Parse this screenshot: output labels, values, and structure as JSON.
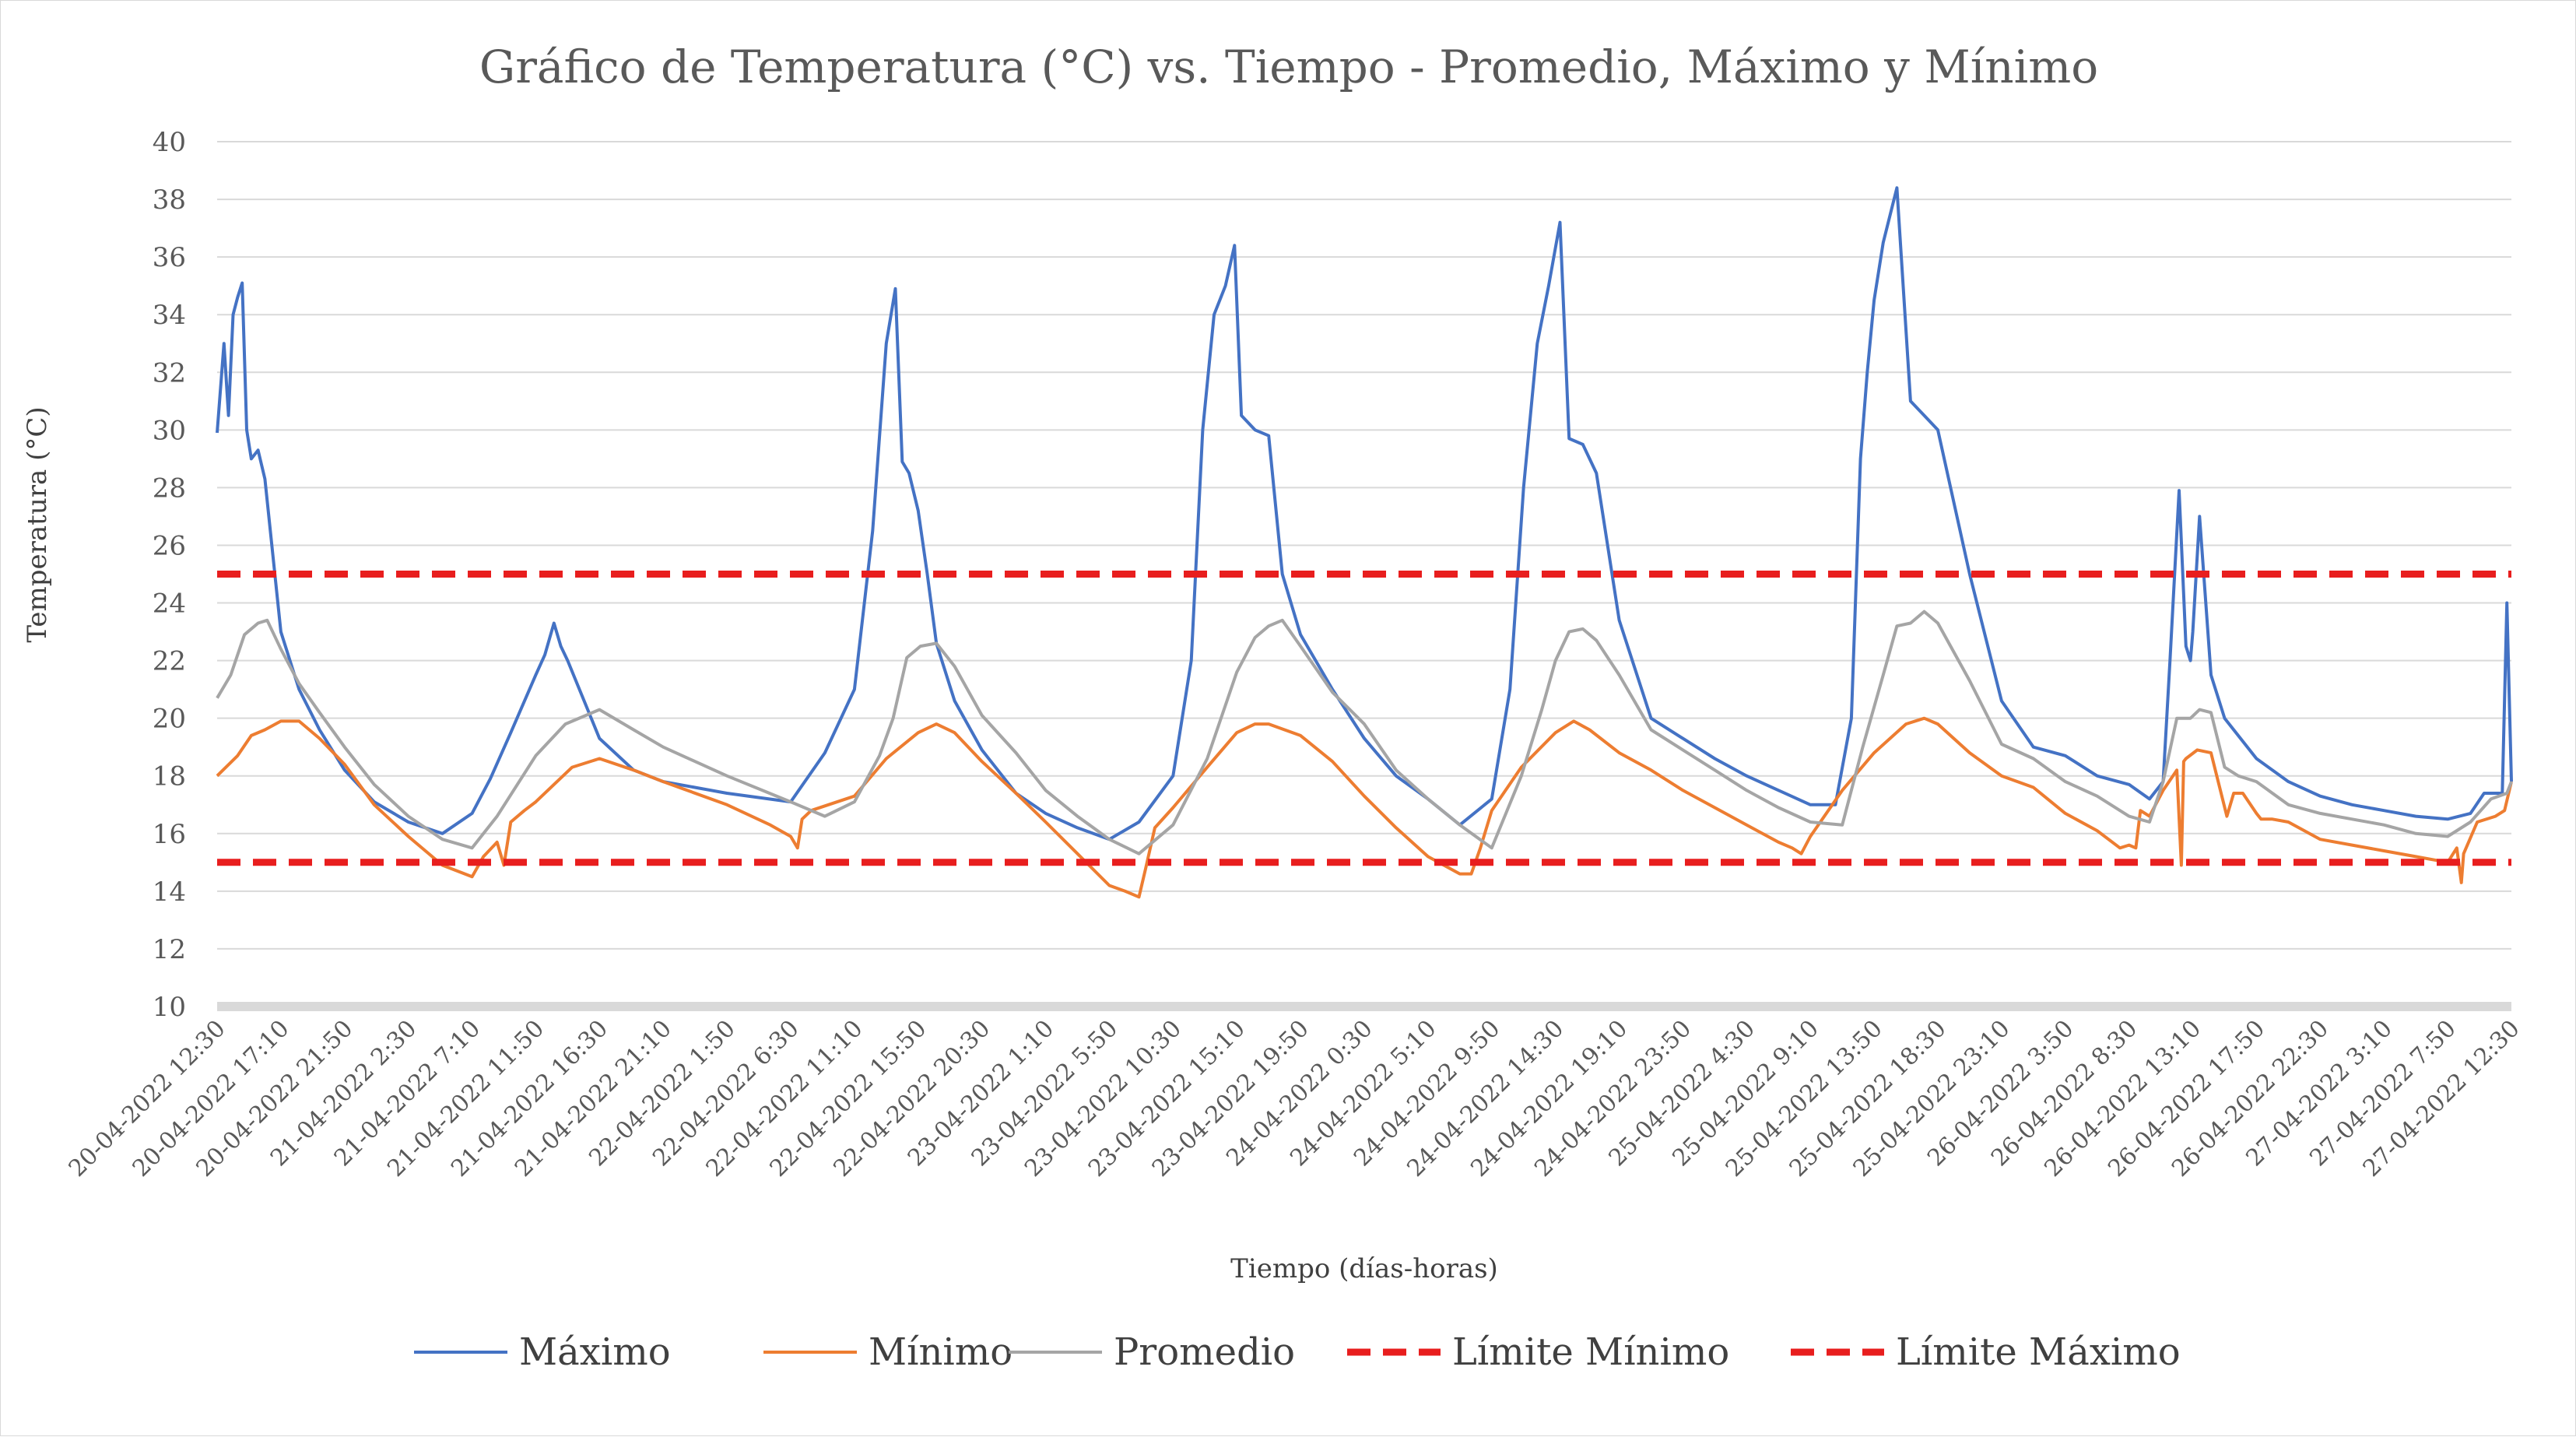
{
  "chart_data": {
    "type": "line",
    "title": "Gráfico de Temperatura (°C) vs. Tiempo - Promedio, Máximo y Mínimo",
    "xlabel": "Tiempo (días-horas)",
    "ylabel": "Temperatura (°C)",
    "ylim": [
      10,
      40
    ],
    "y_ticks": [
      "10",
      "12",
      "14",
      "16",
      "18",
      "20",
      "22",
      "24",
      "26",
      "28",
      "30",
      "32",
      "34",
      "36",
      "38",
      "40"
    ],
    "x_tick_labels": [
      "20-04-2022 12:30",
      "20-04-2022 17:10",
      "20-04-2022 21:50",
      "21-04-2022 2:30",
      "21-04-2022 7:10",
      "21-04-2022 11:50",
      "21-04-2022 16:30",
      "21-04-2022 21:10",
      "22-04-2022 1:50",
      "22-04-2022 6:30",
      "22-04-2022 11:10",
      "22-04-2022 15:50",
      "22-04-2022 20:30",
      "23-04-2022 1:10",
      "23-04-2022 5:50",
      "23-04-2022 10:30",
      "23-04-2022 15:10",
      "23-04-2022 19:50",
      "24-04-2022 0:30",
      "24-04-2022 5:10",
      "24-04-2022 9:50",
      "24-04-2022 14:30",
      "24-04-2022 19:10",
      "24-04-2022 23:50",
      "25-04-2022 4:30",
      "25-04-2022 9:10",
      "25-04-2022 13:50",
      "25-04-2022 18:30",
      "25-04-2022 23:10",
      "26-04-2022 3:50",
      "26-04-2022 8:30",
      "26-04-2022 13:10",
      "26-04-2022 17:50",
      "26-04-2022 22:30",
      "27-04-2022 3:10",
      "27-04-2022 7:50",
      "27-04-2022 12:30"
    ],
    "grid": true,
    "legend_position": "bottom",
    "series": [
      {
        "name": "Máximo",
        "color": "#4472c4",
        "dash": "solid",
        "x": [
          "20-04-2022 12:30",
          "20-04-2022 13:00",
          "20-04-2022 13:20",
          "20-04-2022 13:40",
          "20-04-2022 14:00",
          "20-04-2022 14:20",
          "20-04-2022 14:40",
          "20-04-2022 15:00",
          "20-04-2022 15:30",
          "20-04-2022 16:00",
          "20-04-2022 17:10",
          "20-04-2022 18:30",
          "20-04-2022 20:00",
          "20-04-2022 21:50",
          "21-04-2022 0:00",
          "21-04-2022 2:30",
          "21-04-2022 5:00",
          "21-04-2022 7:10",
          "21-04-2022 8:30",
          "21-04-2022 10:00",
          "21-04-2022 11:50",
          "21-04-2022 12:30",
          "21-04-2022 13:10",
          "21-04-2022 13:40",
          "21-04-2022 14:10",
          "21-04-2022 16:30",
          "21-04-2022 19:00",
          "21-04-2022 21:10",
          "22-04-2022 1:50",
          "22-04-2022 6:30",
          "22-04-2022 9:00",
          "22-04-2022 11:10",
          "22-04-2022 12:30",
          "22-04-2022 13:30",
          "22-04-2022 14:10",
          "22-04-2022 14:40",
          "22-04-2022 15:10",
          "22-04-2022 15:50",
          "22-04-2022 16:30",
          "22-04-2022 17:10",
          "22-04-2022 18:30",
          "22-04-2022 20:30",
          "22-04-2022 23:00",
          "23-04-2022 1:10",
          "23-04-2022 3:30",
          "23-04-2022 5:50",
          "23-04-2022 8:00",
          "23-04-2022 10:30",
          "23-04-2022 11:50",
          "23-04-2022 12:40",
          "23-04-2022 13:30",
          "23-04-2022 14:20",
          "23-04-2022 15:00",
          "23-04-2022 15:30",
          "23-04-2022 16:30",
          "23-04-2022 17:30",
          "23-04-2022 18:30",
          "23-04-2022 19:50",
          "23-04-2022 22:10",
          "24-04-2022 0:30",
          "24-04-2022 2:50",
          "24-04-2022 5:10",
          "24-04-2022 7:30",
          "24-04-2022 9:50",
          "24-04-2022 11:10",
          "24-04-2022 12:10",
          "24-04-2022 13:10",
          "24-04-2022 14:00",
          "24-04-2022 14:50",
          "24-04-2022 15:30",
          "24-04-2022 16:30",
          "24-04-2022 17:30",
          "24-04-2022 19:10",
          "24-04-2022 21:30",
          "24-04-2022 23:50",
          "25-04-2022 2:10",
          "25-04-2022 4:30",
          "25-04-2022 6:50",
          "25-04-2022 9:10",
          "25-04-2022 11:00",
          "25-04-2022 12:10",
          "25-04-2022 12:50",
          "25-04-2022 13:20",
          "25-04-2022 13:50",
          "25-04-2022 14:30",
          "25-04-2022 15:30",
          "25-04-2022 16:30",
          "25-04-2022 17:30",
          "25-04-2022 18:30",
          "25-04-2022 20:50",
          "25-04-2022 23:10",
          "26-04-2022 1:30",
          "26-04-2022 3:50",
          "26-04-2022 6:10",
          "26-04-2022 8:30",
          "26-04-2022 10:00",
          "26-04-2022 11:00",
          "26-04-2022 11:30",
          "26-04-2022 12:10",
          "26-04-2022 12:40",
          "26-04-2022 13:00",
          "26-04-2022 13:10",
          "26-04-2022 13:40",
          "26-04-2022 14:30",
          "26-04-2022 15:30",
          "26-04-2022 17:50",
          "26-04-2022 20:10",
          "26-04-2022 22:30",
          "27-04-2022 0:50",
          "27-04-2022 3:10",
          "27-04-2022 5:30",
          "27-04-2022 7:50",
          "27-04-2022 9:30",
          "27-04-2022 10:30",
          "27-04-2022 11:50",
          "27-04-2022 12:10",
          "27-04-2022 12:30"
        ],
        "y": [
          29.9,
          33.0,
          30.5,
          34.0,
          34.6,
          35.1,
          30.0,
          29.0,
          29.3,
          28.3,
          23.0,
          21.0,
          19.6,
          18.2,
          17.1,
          16.4,
          16.0,
          16.7,
          17.9,
          19.5,
          21.5,
          22.2,
          23.3,
          22.5,
          22.0,
          19.3,
          18.2,
          17.8,
          17.4,
          17.1,
          18.8,
          21.0,
          26.5,
          33.0,
          34.9,
          28.9,
          28.5,
          27.2,
          25.0,
          22.6,
          20.6,
          18.9,
          17.4,
          16.7,
          16.2,
          15.8,
          16.4,
          18.0,
          22.0,
          30.0,
          34.0,
          35.0,
          36.4,
          30.5,
          30.0,
          29.8,
          25.0,
          22.9,
          21.0,
          19.3,
          18.0,
          17.2,
          16.3,
          17.2,
          21.0,
          28.0,
          33.0,
          35.0,
          37.2,
          29.7,
          29.5,
          28.5,
          23.4,
          20.0,
          19.3,
          18.6,
          18.0,
          17.5,
          17.0,
          17.0,
          20.0,
          29.0,
          32.0,
          34.5,
          36.5,
          38.4,
          31.0,
          30.5,
          30.0,
          25.0,
          20.6,
          19.0,
          18.7,
          18.0,
          17.7,
          17.2,
          17.8,
          22.0,
          27.9,
          22.5,
          22.0,
          23.0,
          27.0,
          21.5,
          20.0,
          18.6,
          17.8,
          17.3,
          17.0,
          16.8,
          16.6,
          16.5,
          16.7,
          17.4,
          17.4,
          24.0,
          17.8
        ]
      },
      {
        "name": "Mínimo",
        "color": "#ed7d31",
        "dash": "solid",
        "x": [
          "20-04-2022 12:30",
          "20-04-2022 14:00",
          "20-04-2022 15:00",
          "20-04-2022 16:00",
          "20-04-2022 17:10",
          "20-04-2022 18:30",
          "20-04-2022 20:00",
          "20-04-2022 21:50",
          "21-04-2022 0:00",
          "21-04-2022 2:30",
          "21-04-2022 5:00",
          "21-04-2022 7:10",
          "21-04-2022 8:00",
          "21-04-2022 9:00",
          "21-04-2022 9:30",
          "21-04-2022 10:00",
          "21-04-2022 11:00",
          "21-04-2022 11:50",
          "21-04-2022 13:10",
          "21-04-2022 14:30",
          "21-04-2022 16:30",
          "21-04-2022 19:00",
          "21-04-2022 21:10",
          "22-04-2022 1:50",
          "22-04-2022 5:00",
          "22-04-2022 6:30",
          "22-04-2022 7:00",
          "22-04-2022 7:20",
          "22-04-2022 8:00",
          "22-04-2022 11:10",
          "22-04-2022 13:30",
          "22-04-2022 15:50",
          "22-04-2022 17:10",
          "22-04-2022 18:30",
          "22-04-2022 20:30",
          "22-04-2022 23:00",
          "23-04-2022 1:10",
          "23-04-2022 3:30",
          "23-04-2022 5:50",
          "23-04-2022 7:00",
          "23-04-2022 8:00",
          "23-04-2022 8:30",
          "23-04-2022 9:10",
          "23-04-2022 10:30",
          "23-04-2022 13:00",
          "23-04-2022 15:10",
          "23-04-2022 16:30",
          "23-04-2022 17:30",
          "23-04-2022 19:50",
          "23-04-2022 22:10",
          "24-04-2022 0:30",
          "24-04-2022 2:50",
          "24-04-2022 5:10",
          "24-04-2022 7:30",
          "24-04-2022 8:20",
          "24-04-2022 9:00",
          "24-04-2022 9:50",
          "24-04-2022 12:00",
          "24-04-2022 14:30",
          "24-04-2022 15:50",
          "24-04-2022 17:00",
          "24-04-2022 19:10",
          "24-04-2022 21:30",
          "24-04-2022 23:50",
          "25-04-2022 2:10",
          "25-04-2022 4:30",
          "25-04-2022 6:50",
          "25-04-2022 7:50",
          "25-04-2022 8:30",
          "25-04-2022 9:10",
          "25-04-2022 11:30",
          "25-04-2022 13:50",
          "25-04-2022 16:10",
          "25-04-2022 17:30",
          "25-04-2022 18:30",
          "25-04-2022 20:50",
          "25-04-2022 23:10",
          "26-04-2022 1:30",
          "26-04-2022 3:50",
          "26-04-2022 6:10",
          "26-04-2022 7:50",
          "26-04-2022 8:30",
          "26-04-2022 9:00",
          "26-04-2022 9:20",
          "26-04-2022 10:00",
          "26-04-2022 11:00",
          "26-04-2022 12:00",
          "26-04-2022 12:20",
          "26-04-2022 12:30",
          "26-04-2022 12:40",
          "26-04-2022 13:30",
          "26-04-2022 14:30",
          "26-04-2022 15:40",
          "26-04-2022 16:10",
          "26-04-2022 16:20",
          "26-04-2022 16:50",
          "26-04-2022 17:50",
          "26-04-2022 18:10",
          "26-04-2022 19:00",
          "26-04-2022 20:10",
          "26-04-2022 22:30",
          "27-04-2022 0:50",
          "27-04-2022 3:10",
          "27-04-2022 5:30",
          "27-04-2022 7:50",
          "27-04-2022 8:30",
          "27-04-2022 8:50",
          "27-04-2022 9:00",
          "27-04-2022 10:00",
          "27-04-2022 11:20",
          "27-04-2022 12:00",
          "27-04-2022 12:30"
        ],
        "y": [
          18.0,
          18.7,
          19.4,
          19.6,
          19.9,
          19.9,
          19.3,
          18.4,
          17.0,
          15.9,
          14.9,
          14.5,
          15.2,
          15.7,
          14.9,
          16.4,
          16.8,
          17.1,
          17.7,
          18.3,
          18.6,
          18.2,
          17.8,
          17.0,
          16.3,
          15.9,
          15.5,
          16.5,
          16.8,
          17.3,
          18.6,
          19.5,
          19.8,
          19.5,
          18.5,
          17.4,
          16.4,
          15.3,
          14.2,
          14.0,
          13.8,
          14.8,
          16.2,
          16.9,
          18.3,
          19.5,
          19.8,
          19.8,
          19.4,
          18.5,
          17.3,
          16.2,
          15.2,
          14.6,
          14.6,
          15.5,
          16.8,
          18.3,
          19.5,
          19.9,
          19.6,
          18.8,
          18.2,
          17.5,
          16.9,
          16.3,
          15.7,
          15.5,
          15.3,
          15.9,
          17.5,
          18.8,
          19.8,
          20.0,
          19.8,
          18.8,
          18.0,
          17.6,
          16.7,
          16.1,
          15.5,
          15.6,
          15.5,
          16.8,
          16.6,
          17.5,
          18.2,
          14.9,
          18.5,
          18.6,
          18.9,
          18.8,
          16.6,
          17.4,
          17.4,
          17.4,
          16.7,
          16.5,
          16.5,
          16.4,
          15.8,
          15.6,
          15.4,
          15.2,
          15.0,
          15.5,
          14.3,
          15.3,
          16.4,
          16.6,
          16.8,
          17.8
        ]
      },
      {
        "name": "Promedio",
        "color": "#a5a5a5",
        "dash": "solid",
        "x": [
          "20-04-2022 12:30",
          "20-04-2022 13:30",
          "20-04-2022 14:30",
          "20-04-2022 15:30",
          "20-04-2022 16:10",
          "20-04-2022 17:10",
          "20-04-2022 18:30",
          "20-04-2022 20:00",
          "20-04-2022 21:50",
          "21-04-2022 0:00",
          "21-04-2022 2:30",
          "21-04-2022 5:00",
          "21-04-2022 7:10",
          "21-04-2022 9:00",
          "21-04-2022 11:50",
          "21-04-2022 14:00",
          "21-04-2022 16:30",
          "21-04-2022 19:00",
          "21-04-2022 21:10",
          "22-04-2022 1:50",
          "22-04-2022 6:30",
          "22-04-2022 9:00",
          "22-04-2022 11:10",
          "22-04-2022 13:00",
          "22-04-2022 14:00",
          "22-04-2022 15:00",
          "22-04-2022 16:00",
          "22-04-2022 17:10",
          "22-04-2022 18:30",
          "22-04-2022 20:30",
          "22-04-2022 23:00",
          "23-04-2022 1:10",
          "23-04-2022 3:30",
          "23-04-2022 5:50",
          "23-04-2022 8:00",
          "23-04-2022 10:30",
          "23-04-2022 13:00",
          "23-04-2022 15:10",
          "23-04-2022 16:30",
          "23-04-2022 17:30",
          "23-04-2022 18:30",
          "23-04-2022 19:50",
          "23-04-2022 22:10",
          "24-04-2022 0:30",
          "24-04-2022 2:50",
          "24-04-2022 5:10",
          "24-04-2022 7:30",
          "24-04-2022 9:50",
          "24-04-2022 12:00",
          "24-04-2022 13:30",
          "24-04-2022 14:30",
          "24-04-2022 15:30",
          "24-04-2022 16:30",
          "24-04-2022 17:30",
          "24-04-2022 19:10",
          "24-04-2022 21:30",
          "24-04-2022 23:50",
          "25-04-2022 2:10",
          "25-04-2022 4:30",
          "25-04-2022 6:50",
          "25-04-2022 9:10",
          "25-04-2022 11:30",
          "25-04-2022 13:00",
          "25-04-2022 14:30",
          "25-04-2022 15:30",
          "25-04-2022 16:30",
          "25-04-2022 17:30",
          "25-04-2022 18:30",
          "25-04-2022 20:50",
          "25-04-2022 23:10",
          "26-04-2022 1:30",
          "26-04-2022 3:50",
          "26-04-2022 6:10",
          "26-04-2022 8:30",
          "26-04-2022 10:00",
          "26-04-2022 11:00",
          "26-04-2022 12:00",
          "26-04-2022 13:00",
          "26-04-2022 13:40",
          "26-04-2022 14:30",
          "26-04-2022 15:30",
          "26-04-2022 16:30",
          "26-04-2022 17:50",
          "26-04-2022 20:10",
          "26-04-2022 22:30",
          "27-04-2022 0:50",
          "27-04-2022 3:10",
          "27-04-2022 5:30",
          "27-04-2022 7:50",
          "27-04-2022 9:30",
          "27-04-2022 11:00",
          "27-04-2022 12:10",
          "27-04-2022 12:30"
        ],
        "y": [
          20.7,
          21.5,
          22.9,
          23.3,
          23.4,
          22.4,
          21.2,
          20.2,
          19.0,
          17.7,
          16.6,
          15.8,
          15.5,
          16.6,
          18.7,
          19.8,
          20.3,
          19.6,
          19.0,
          18.0,
          17.1,
          16.6,
          17.1,
          18.7,
          20.0,
          22.1,
          22.5,
          22.6,
          21.8,
          20.1,
          18.8,
          17.5,
          16.6,
          15.8,
          15.3,
          16.3,
          18.6,
          21.6,
          22.8,
          23.2,
          23.4,
          22.5,
          20.9,
          19.8,
          18.2,
          17.2,
          16.3,
          15.5,
          18.0,
          20.3,
          22.0,
          23.0,
          23.1,
          22.7,
          21.5,
          19.6,
          18.9,
          18.2,
          17.5,
          16.9,
          16.4,
          16.3,
          19.0,
          21.5,
          23.2,
          23.3,
          23.7,
          23.3,
          21.3,
          19.1,
          18.6,
          17.8,
          17.3,
          16.6,
          16.4,
          17.8,
          20.0,
          20.0,
          20.3,
          20.2,
          18.3,
          18.0,
          17.8,
          17.0,
          16.7,
          16.5,
          16.3,
          16.0,
          15.9,
          16.4,
          17.2,
          17.4,
          17.8
        ]
      },
      {
        "name": "Límite Mínimo",
        "color": "#e81e1e",
        "dash": "dashed",
        "x": [
          "20-04-2022 12:30",
          "27-04-2022 12:30"
        ],
        "y": [
          15,
          15
        ]
      },
      {
        "name": "Límite Máximo",
        "color": "#e81e1e",
        "dash": "dashed",
        "x": [
          "20-04-2022 12:30",
          "27-04-2022 12:30"
        ],
        "y": [
          25,
          25
        ]
      }
    ]
  }
}
